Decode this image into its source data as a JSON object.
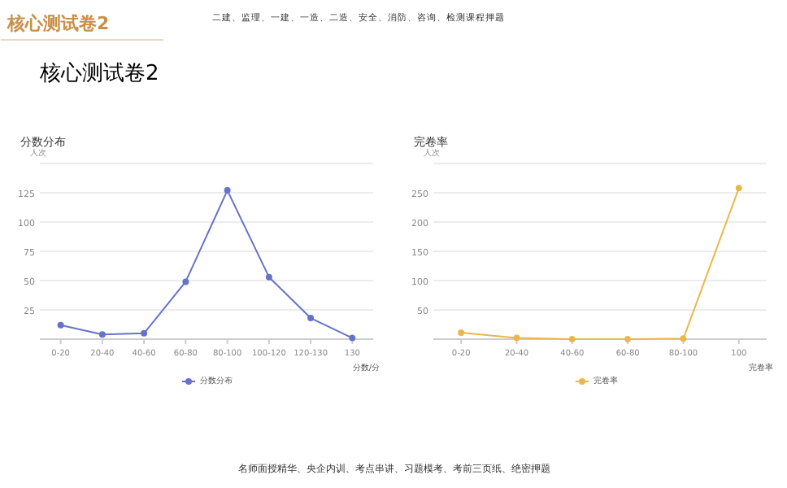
{
  "chart_data": [
    {
      "type": "line",
      "title": "分数分布",
      "ylabel": "人次",
      "xlabel": "分数/分",
      "categories": [
        "0-20",
        "20-40",
        "40-60",
        "60-80",
        "80-100",
        "100-120",
        "120-130",
        "130"
      ],
      "series": [
        {
          "name": "分数分布",
          "color": "#6673c9",
          "values": [
            12,
            4,
            5,
            49,
            127,
            53,
            18,
            1
          ]
        }
      ],
      "ylim": [
        0,
        150
      ],
      "yticks": [
        {
          "value": 0,
          "label": null
        },
        25,
        50,
        75,
        100,
        125,
        {
          "value": 150,
          "label": null
        }
      ],
      "grid": "y",
      "legend": "bottom",
      "marker": "circle",
      "line_style": "solid",
      "annotations": [
        "核心测试卷2",
        "二建、监理、一建、一造、二造、安全、消防、咨询、检测课程押题",
        "核心测试卷2",
        "名师面授精华、央企内训、考点串讲、习题模考、考前三页纸、绝密押题"
      ]
    },
    {
      "type": "line",
      "title": "完卷率",
      "ylabel": "人次",
      "xlabel": "完卷率",
      "categories": [
        "0-20",
        "20-40",
        "40-60",
        "60-80",
        "80-100",
        "100"
      ],
      "series": [
        {
          "name": "完卷率",
          "color": "#e8b84a",
          "values": [
            11,
            2,
            0,
            0,
            1,
            258
          ]
        }
      ],
      "ylim": [
        0,
        300
      ],
      "yticks": [
        {
          "value": 0,
          "label": null
        },
        50,
        100,
        150,
        200,
        250,
        {
          "value": 300,
          "label": null
        }
      ],
      "grid": "y",
      "legend": "bottom",
      "marker": "circle",
      "line_style": "solid"
    }
  ]
}
